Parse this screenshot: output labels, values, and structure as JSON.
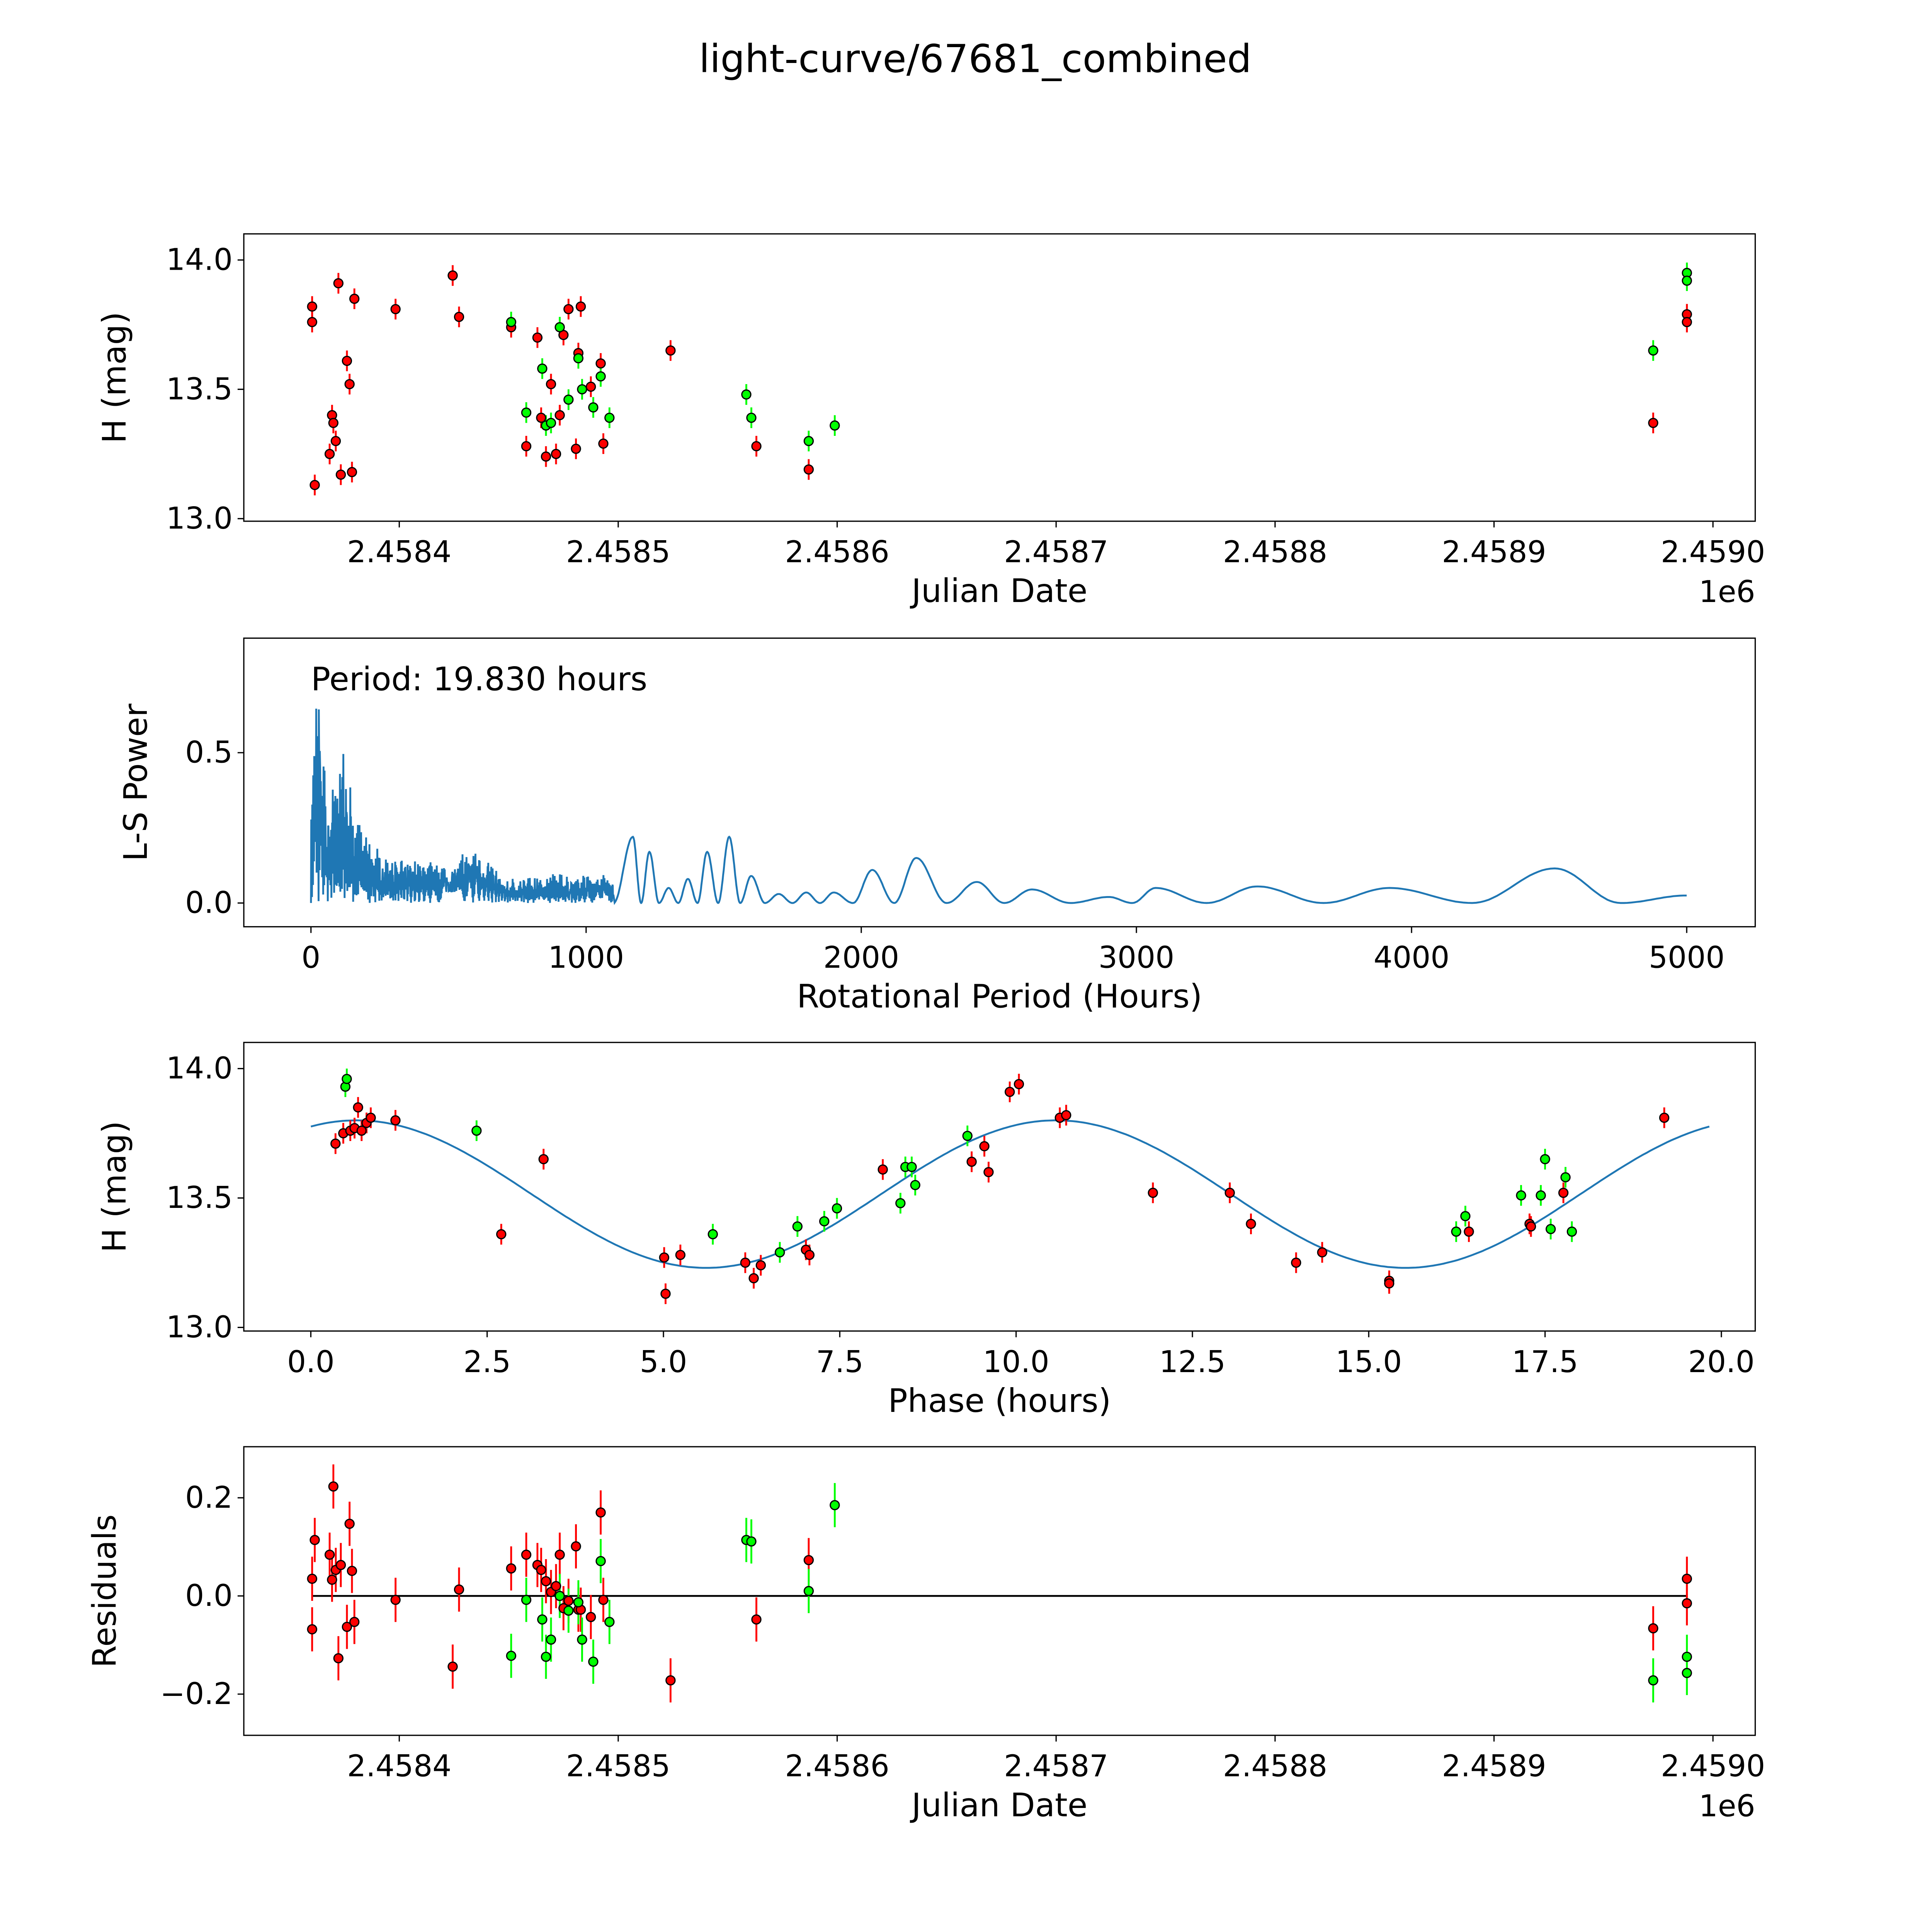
{
  "title": "light-curve/67681_combined",
  "colors": {
    "red": "#ff0000",
    "green": "#00ff00",
    "model": "#1f77b4",
    "edge": "#000000"
  },
  "chart_data": [
    {
      "type": "scatter",
      "id": "lightcurve",
      "xlabel": "Julian Date",
      "ylabel": "H (mag)",
      "x_offset": 2458300,
      "x_offset_label": "1e6",
      "xlim": [
        29,
        719.3
      ],
      "ylim": [
        12.99,
        14.101
      ],
      "xticks": [
        {
          "v": 100,
          "label": "2.4584"
        },
        {
          "v": 200,
          "label": "2.4585"
        },
        {
          "v": 300,
          "label": "2.4586"
        },
        {
          "v": 400,
          "label": "2.4587"
        },
        {
          "v": 500,
          "label": "2.4588"
        },
        {
          "v": 600,
          "label": "2.4589"
        },
        {
          "v": 700,
          "label": "2.4590"
        }
      ],
      "yticks": [
        {
          "v": 13.0,
          "label": "13.0"
        },
        {
          "v": 13.5,
          "label": "13.5"
        },
        {
          "v": 14.0,
          "label": "14.0"
        }
      ],
      "error": 0.04,
      "series": [
        {
          "name": "red",
          "color": "#ff0000",
          "points": [
            [
              60.2,
              13.82
            ],
            [
              60.2,
              13.76
            ],
            [
              61.4,
              13.13
            ],
            [
              68.2,
              13.25
            ],
            [
              69.3,
              13.4
            ],
            [
              69.9,
              13.37
            ],
            [
              71.0,
              13.3
            ],
            [
              72.2,
              13.91
            ],
            [
              73.3,
              13.17
            ],
            [
              76.1,
              13.61
            ],
            [
              77.3,
              13.52
            ],
            [
              78.4,
              13.18
            ],
            [
              79.5,
              13.85
            ],
            [
              98.3,
              13.81
            ],
            [
              124.4,
              13.94
            ],
            [
              127.3,
              13.78
            ],
            [
              151.1,
              13.74
            ],
            [
              158.0,
              13.28
            ],
            [
              163.1,
              13.7
            ],
            [
              164.8,
              13.39
            ],
            [
              167.0,
              13.24
            ],
            [
              169.3,
              13.52
            ],
            [
              171.6,
              13.25
            ],
            [
              173.3,
              13.4
            ],
            [
              175.0,
              13.71
            ],
            [
              177.3,
              13.81
            ],
            [
              180.7,
              13.27
            ],
            [
              181.8,
              13.64
            ],
            [
              182.9,
              13.82
            ],
            [
              187.5,
              13.51
            ],
            [
              192.0,
              13.6
            ],
            [
              193.2,
              13.29
            ],
            [
              223.9,
              13.65
            ],
            [
              263.1,
              13.28
            ],
            [
              287.0,
              13.19
            ],
            [
              672.7,
              13.37
            ],
            [
              688.1,
              13.79
            ],
            [
              688.1,
              13.76
            ]
          ]
        },
        {
          "name": "green",
          "color": "#00ff00",
          "points": [
            [
              151.1,
              13.76
            ],
            [
              158.0,
              13.41
            ],
            [
              165.3,
              13.58
            ],
            [
              167.0,
              13.36
            ],
            [
              169.3,
              13.37
            ],
            [
              173.3,
              13.74
            ],
            [
              177.3,
              13.46
            ],
            [
              181.8,
              13.62
            ],
            [
              183.5,
              13.5
            ],
            [
              188.6,
              13.43
            ],
            [
              192.0,
              13.55
            ],
            [
              196.0,
              13.39
            ],
            [
              258.5,
              13.48
            ],
            [
              260.8,
              13.39
            ],
            [
              287.0,
              13.3
            ],
            [
              298.9,
              13.36
            ],
            [
              672.7,
              13.65
            ],
            [
              688.1,
              13.95
            ],
            [
              688.1,
              13.92
            ]
          ]
        }
      ]
    },
    {
      "type": "line",
      "id": "periodogram",
      "xlabel": "Rotational Period (Hours)",
      "ylabel": "L-S Power",
      "annotation": "Period: 19.830 hours",
      "best_period_hours": 19.83,
      "xlim": [
        -244,
        5249
      ],
      "ylim": [
        -0.079,
        0.881
      ],
      "xticks": [
        {
          "v": 0,
          "label": "0"
        },
        {
          "v": 1000,
          "label": "1000"
        },
        {
          "v": 2000,
          "label": "2000"
        },
        {
          "v": 3000,
          "label": "3000"
        },
        {
          "v": 4000,
          "label": "4000"
        },
        {
          "v": 5000,
          "label": "5000"
        }
      ],
      "yticks": [
        {
          "v": 0.0,
          "label": "0.0"
        },
        {
          "v": 0.5,
          "label": "0.5"
        }
      ],
      "x_range": [
        0,
        5000
      ],
      "noisy_envelope": [
        [
          0,
          0.3
        ],
        [
          19.83,
          0.83
        ],
        [
          35,
          0.7
        ],
        [
          60,
          0.35
        ],
        [
          120,
          0.55
        ],
        [
          160,
          0.3
        ],
        [
          200,
          0.22
        ],
        [
          300,
          0.15
        ],
        [
          500,
          0.14
        ],
        [
          600,
          0.2
        ],
        [
          700,
          0.08
        ],
        [
          900,
          0.1
        ],
        [
          1100,
          0.1
        ]
      ],
      "broad_peaks": [
        [
          1170,
          0.22
        ],
        [
          1230,
          0.17
        ],
        [
          1300,
          0.05
        ],
        [
          1370,
          0.08
        ],
        [
          1440,
          0.17
        ],
        [
          1520,
          0.22
        ],
        [
          1600,
          0.09
        ],
        [
          1700,
          0.03
        ],
        [
          1800,
          0.035
        ],
        [
          1900,
          0.035
        ],
        [
          2040,
          0.11
        ],
        [
          2200,
          0.15
        ],
        [
          2420,
          0.07
        ],
        [
          2620,
          0.045
        ],
        [
          2900,
          0.02
        ],
        [
          3070,
          0.05
        ],
        [
          3440,
          0.055
        ],
        [
          3920,
          0.05
        ],
        [
          4520,
          0.115
        ],
        [
          5000,
          0.025
        ]
      ]
    },
    {
      "type": "scatter",
      "id": "phased",
      "xlabel": "Phase (hours)",
      "ylabel": "H (mag)",
      "xlim": [
        -0.95,
        20.48
      ],
      "ylim": [
        12.986,
        14.101
      ],
      "xticks": [
        {
          "v": 0,
          "label": "0.0"
        },
        {
          "v": 2.5,
          "label": "2.5"
        },
        {
          "v": 5,
          "label": "5.0"
        },
        {
          "v": 7.5,
          "label": "7.5"
        },
        {
          "v": 10,
          "label": "10.0"
        },
        {
          "v": 12.5,
          "label": "12.5"
        },
        {
          "v": 15,
          "label": "15.0"
        },
        {
          "v": 17.5,
          "label": "17.5"
        },
        {
          "v": 20,
          "label": "20.0"
        }
      ],
      "yticks": [
        {
          "v": 13.0,
          "label": "13.0"
        },
        {
          "v": 13.5,
          "label": "13.5"
        },
        {
          "v": 14.0,
          "label": "14.0"
        }
      ],
      "error": 0.04,
      "model": {
        "mean": 13.515,
        "amplitude": 0.285,
        "phase_of_max": 0.65,
        "period": 19.83,
        "harmonics": 2
      },
      "series": [
        {
          "name": "red",
          "color": "#ff0000",
          "points": [
            [
              0.35,
              13.71
            ],
            [
              0.46,
              13.75
            ],
            [
              0.56,
              13.76
            ],
            [
              0.62,
              13.77
            ],
            [
              0.67,
              13.85
            ],
            [
              0.72,
              13.76
            ],
            [
              0.79,
              13.79
            ],
            [
              0.85,
              13.81
            ],
            [
              1.2,
              13.8
            ],
            [
              2.7,
              13.36
            ],
            [
              3.3,
              13.65
            ],
            [
              5.01,
              13.27
            ],
            [
              5.03,
              13.13
            ],
            [
              5.24,
              13.28
            ],
            [
              6.16,
              13.25
            ],
            [
              6.28,
              13.19
            ],
            [
              6.38,
              13.24
            ],
            [
              7.02,
              13.3
            ],
            [
              7.07,
              13.28
            ],
            [
              8.11,
              13.61
            ],
            [
              9.37,
              13.64
            ],
            [
              9.55,
              13.7
            ],
            [
              9.61,
              13.6
            ],
            [
              9.91,
              13.91
            ],
            [
              10.04,
              13.94
            ],
            [
              10.62,
              13.81
            ],
            [
              10.71,
              13.82
            ],
            [
              11.94,
              13.52
            ],
            [
              13.03,
              13.52
            ],
            [
              13.33,
              13.4
            ],
            [
              13.97,
              13.25
            ],
            [
              14.34,
              13.29
            ],
            [
              15.29,
              13.18
            ],
            [
              15.29,
              13.17
            ],
            [
              16.42,
              13.37
            ],
            [
              17.28,
              13.4
            ],
            [
              17.3,
              13.39
            ],
            [
              17.76,
              13.52
            ],
            [
              19.19,
              13.81
            ]
          ]
        },
        {
          "name": "green",
          "color": "#00ff00",
          "points": [
            [
              0.49,
              13.93
            ],
            [
              0.51,
              13.96
            ],
            [
              2.35,
              13.76
            ],
            [
              5.7,
              13.36
            ],
            [
              6.65,
              13.29
            ],
            [
              6.9,
              13.39
            ],
            [
              7.28,
              13.41
            ],
            [
              7.46,
              13.46
            ],
            [
              8.36,
              13.48
            ],
            [
              8.43,
              13.62
            ],
            [
              8.52,
              13.62
            ],
            [
              8.57,
              13.55
            ],
            [
              9.31,
              13.74
            ],
            [
              16.24,
              13.37
            ],
            [
              16.37,
              13.43
            ],
            [
              17.16,
              13.51
            ],
            [
              17.44,
              13.51
            ],
            [
              17.5,
              13.65
            ],
            [
              17.58,
              13.38
            ],
            [
              17.79,
              13.58
            ],
            [
              17.88,
              13.37
            ]
          ]
        }
      ]
    },
    {
      "type": "scatter",
      "id": "residuals",
      "xlabel": "Julian Date",
      "ylabel": "Residuals",
      "x_offset": 2458300,
      "x_offset_label": "1e6",
      "xlim": [
        29,
        719.3
      ],
      "ylim": [
        -0.284,
        0.304
      ],
      "zero_line": [
        60.2,
        688.1
      ],
      "xticks": [
        {
          "v": 100,
          "label": "2.4584"
        },
        {
          "v": 200,
          "label": "2.4585"
        },
        {
          "v": 300,
          "label": "2.4586"
        },
        {
          "v": 400,
          "label": "2.4587"
        },
        {
          "v": 500,
          "label": "2.4588"
        },
        {
          "v": 600,
          "label": "2.4589"
        },
        {
          "v": 700,
          "label": "2.4590"
        }
      ],
      "yticks": [
        {
          "v": -0.2,
          "label": "−0.2"
        },
        {
          "v": 0.0,
          "label": "0.0"
        },
        {
          "v": 0.2,
          "label": "0.2"
        }
      ],
      "error": 0.045,
      "series": [
        {
          "name": "red",
          "color": "#ff0000",
          "points": [
            [
              60.2,
              0.035
            ],
            [
              60.2,
              -0.068
            ],
            [
              61.4,
              0.114
            ],
            [
              68.2,
              0.084
            ],
            [
              69.3,
              0.033
            ],
            [
              69.9,
              0.223
            ],
            [
              71.0,
              0.053
            ],
            [
              72.2,
              -0.127
            ],
            [
              73.3,
              0.063
            ],
            [
              76.1,
              -0.063
            ],
            [
              77.3,
              0.147
            ],
            [
              78.4,
              0.051
            ],
            [
              79.5,
              -0.053
            ],
            [
              98.3,
              -0.008
            ],
            [
              124.4,
              -0.144
            ],
            [
              127.3,
              0.013
            ],
            [
              151.1,
              0.056
            ],
            [
              158.0,
              0.084
            ],
            [
              163.1,
              0.063
            ],
            [
              164.8,
              0.053
            ],
            [
              167.0,
              0.03
            ],
            [
              169.3,
              0.008
            ],
            [
              171.6,
              0.02
            ],
            [
              173.3,
              0.084
            ],
            [
              175.0,
              -0.025
            ],
            [
              177.3,
              -0.01
            ],
            [
              180.7,
              0.101
            ],
            [
              181.8,
              -0.028
            ],
            [
              182.9,
              -0.028
            ],
            [
              187.5,
              -0.043
            ],
            [
              192.0,
              0.17
            ],
            [
              193.2,
              -0.008
            ],
            [
              223.9,
              -0.172
            ],
            [
              263.1,
              -0.048
            ],
            [
              287.0,
              0.073
            ],
            [
              672.7,
              -0.066
            ],
            [
              688.1,
              0.035
            ],
            [
              688.1,
              -0.015
            ]
          ]
        },
        {
          "name": "green",
          "color": "#00ff00",
          "points": [
            [
              151.1,
              -0.122
            ],
            [
              158.0,
              -0.008
            ],
            [
              165.3,
              -0.048
            ],
            [
              167.0,
              -0.124
            ],
            [
              169.3,
              -0.089
            ],
            [
              173.3,
              0.0
            ],
            [
              177.3,
              -0.03
            ],
            [
              181.8,
              -0.013
            ],
            [
              183.5,
              -0.089
            ],
            [
              188.6,
              -0.134
            ],
            [
              192.0,
              0.071
            ],
            [
              196.0,
              -0.053
            ],
            [
              258.5,
              0.114
            ],
            [
              260.8,
              0.111
            ],
            [
              287.0,
              0.01
            ],
            [
              298.9,
              0.185
            ],
            [
              672.7,
              -0.172
            ],
            [
              688.1,
              -0.124
            ],
            [
              688.1,
              -0.157
            ]
          ]
        }
      ]
    }
  ]
}
